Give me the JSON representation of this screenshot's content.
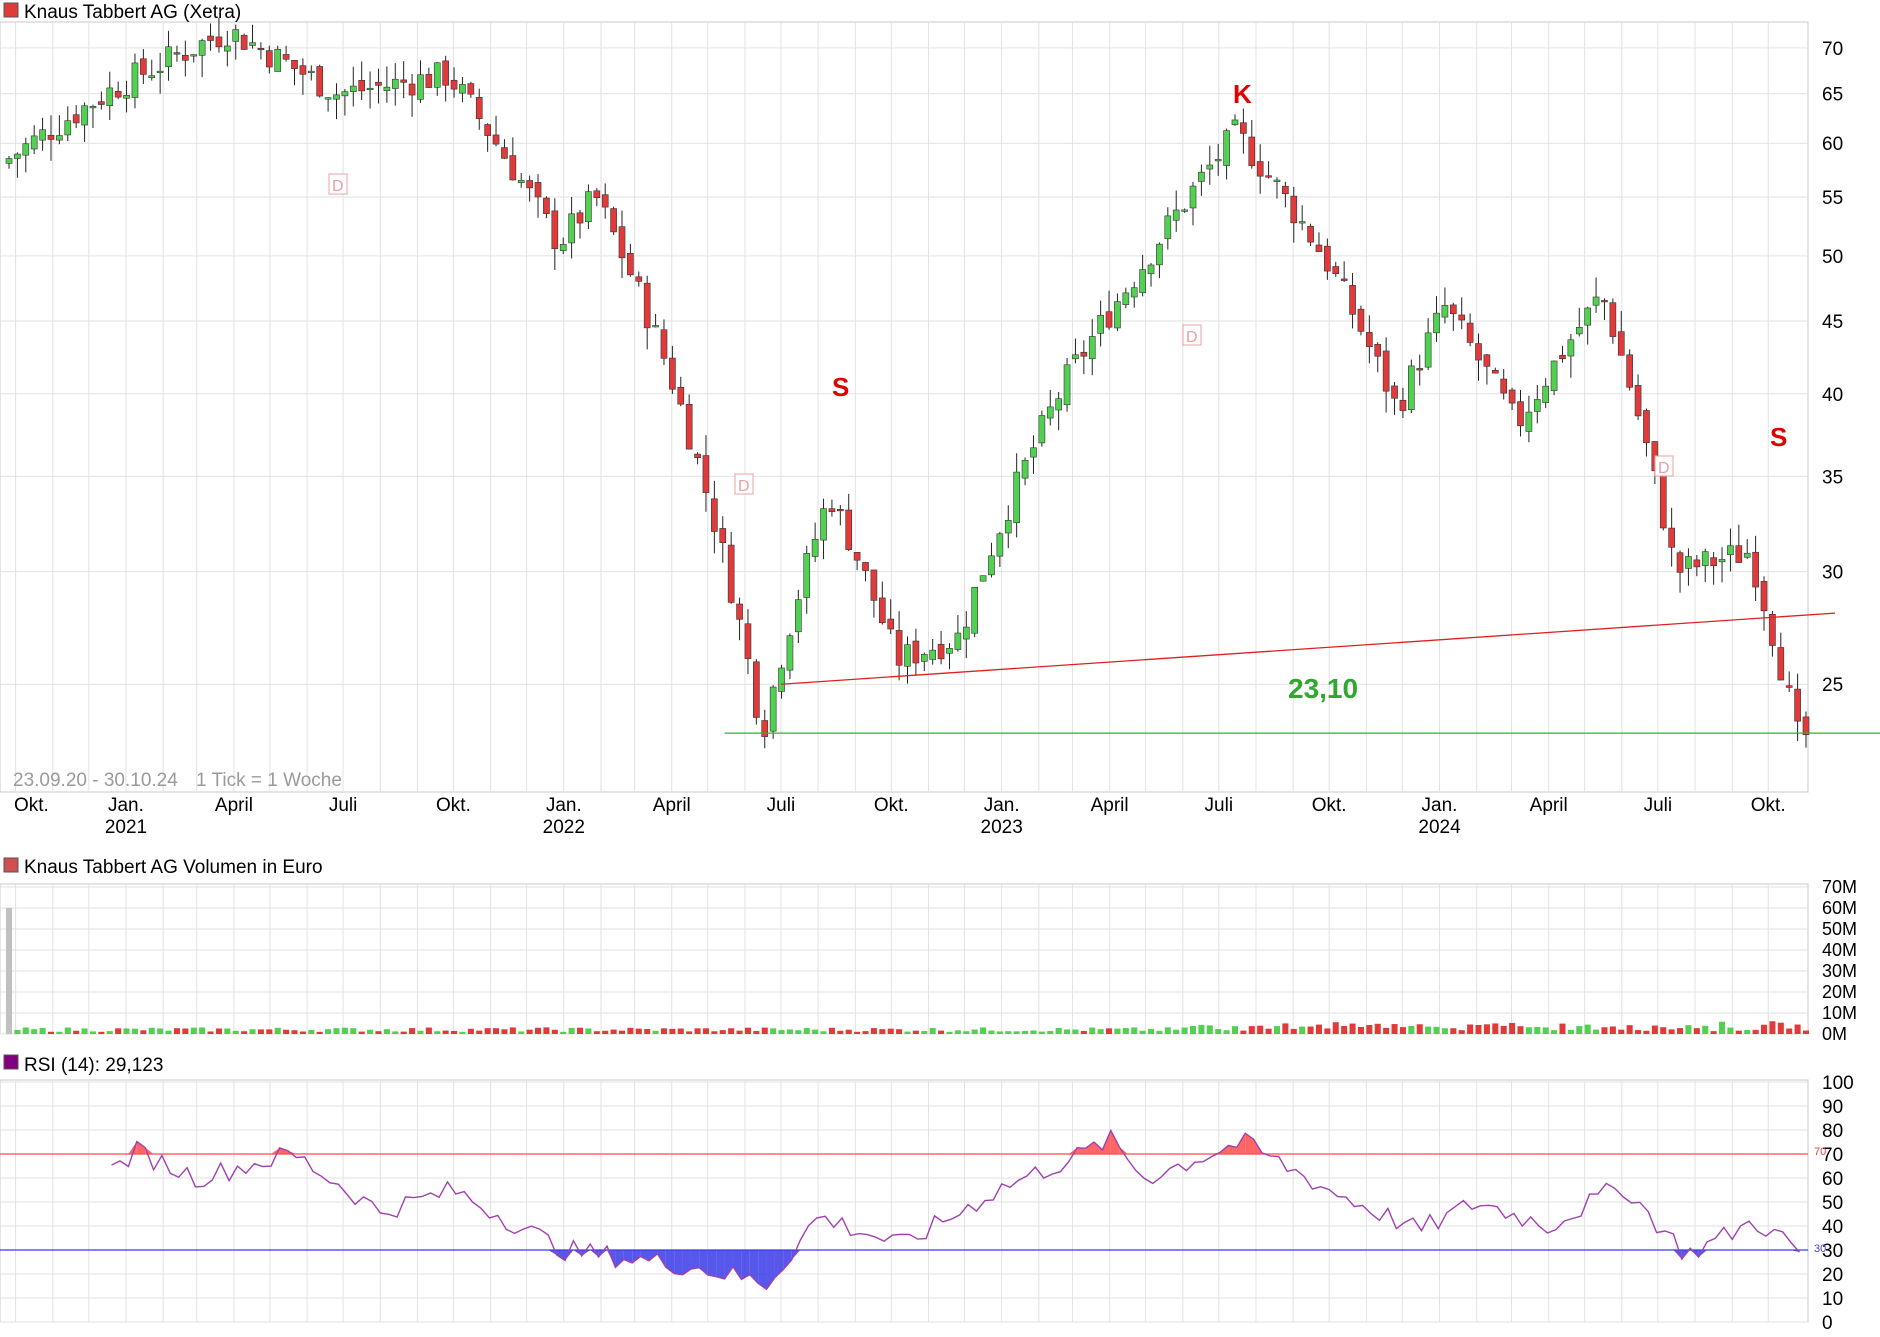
{
  "colors": {
    "up": "#52d052",
    "down": "#e03a3a",
    "grid": "#e2e2e2",
    "rsi_line": "#a040b0",
    "overbought": "#ff4a4a",
    "oversold": "#3a3ae8",
    "support": "#e02020",
    "level": "#30b030"
  },
  "price_panel": {
    "title": "Knaus Tabbert AG (Xetra)",
    "range_text": "23.09.20 - 30.10.24",
    "tick_text": "1 Tick = 1 Woche",
    "y_ticks": [
      "25",
      "30",
      "35",
      "40",
      "45",
      "50",
      "55",
      "60",
      "65",
      "70"
    ],
    "month_labels": [
      "Okt.",
      "Jan.",
      "April",
      "Juli",
      "Okt.",
      "Jan.",
      "April",
      "Juli",
      "Okt.",
      "Jan.",
      "April",
      "Juli",
      "Okt.",
      "Jan.",
      "April",
      "Juli",
      "Okt."
    ],
    "year_labels": [
      "2021",
      "2022",
      "2023",
      "2024"
    ],
    "annotations": {
      "s1": "S",
      "k": "K",
      "s2": "S",
      "level_label": "23,10",
      "d_markers": [
        "D",
        "D",
        "D",
        "D"
      ]
    }
  },
  "volume_panel": {
    "title": "Knaus Tabbert AG Volumen in Euro",
    "y_ticks": [
      "0M",
      "10M",
      "20M",
      "30M",
      "40M",
      "50M",
      "60M",
      "70M"
    ]
  },
  "rsi_panel": {
    "title": "RSI (14): 29,123",
    "y_ticks": [
      "0",
      "10",
      "20",
      "30",
      "40",
      "50",
      "60",
      "70",
      "80",
      "90",
      "100"
    ],
    "line70": "70",
    "line30": "30"
  },
  "chart_data": {
    "type": "candlestick",
    "title": "Knaus Tabbert AG (Xetra)",
    "period": "23.09.20 - 30.10.24",
    "interval": "1 Tick = 1 Woche",
    "ylim": [
      21,
      73
    ],
    "key_points": [
      {
        "date": "2020-09-23",
        "close": 58
      },
      {
        "date": "2021-01-01",
        "close": 66
      },
      {
        "date": "2021-04-01",
        "close": 72
      },
      {
        "date": "2021-07-01",
        "close": 65
      },
      {
        "date": "2021-10-01",
        "close": 67
      },
      {
        "date": "2022-01-01",
        "close": 51
      },
      {
        "date": "2022-02-01",
        "close": 55
      },
      {
        "date": "2022-04-01",
        "close": 42
      },
      {
        "date": "2022-06-20",
        "close": 23.1
      },
      {
        "date": "2022-08-15",
        "close": 34
      },
      {
        "date": "2022-10-10",
        "close": 26
      },
      {
        "date": "2022-12-01",
        "close": 27
      },
      {
        "date": "2023-03-01",
        "close": 41
      },
      {
        "date": "2023-05-01",
        "close": 49
      },
      {
        "date": "2023-07-20",
        "close": 61
      },
      {
        "date": "2023-10-01",
        "close": 50
      },
      {
        "date": "2023-12-01",
        "close": 39
      },
      {
        "date": "2024-01-10",
        "close": 46
      },
      {
        "date": "2024-03-10",
        "close": 38
      },
      {
        "date": "2024-05-20",
        "close": 47
      },
      {
        "date": "2024-07-20",
        "close": 30
      },
      {
        "date": "2024-09-20",
        "close": 31
      },
      {
        "date": "2024-10-30",
        "close": 23
      }
    ],
    "support_line": [
      {
        "date": "2022-07-01",
        "value": 25.0
      },
      {
        "date": "2024-10-30",
        "value": 28.0
      }
    ],
    "horizontal_level": 23.1,
    "annotations": [
      "S",
      "K",
      "S"
    ],
    "rsi": {
      "period": 14,
      "last": 29.123,
      "overbought": 70,
      "oversold": 30
    },
    "rsi_key_points": [
      {
        "date": "2020-12-20",
        "value": 63
      },
      {
        "date": "2021-01-10",
        "value": 71
      },
      {
        "date": "2021-03-01",
        "value": 60
      },
      {
        "date": "2021-05-20",
        "value": 70
      },
      {
        "date": "2021-08-01",
        "value": 46
      },
      {
        "date": "2021-10-01",
        "value": 55
      },
      {
        "date": "2022-01-01",
        "value": 30
      },
      {
        "date": "2022-04-20",
        "value": 23
      },
      {
        "date": "2022-06-20",
        "value": 16
      },
      {
        "date": "2022-08-01",
        "value": 44
      },
      {
        "date": "2022-10-10",
        "value": 32
      },
      {
        "date": "2023-01-01",
        "value": 56
      },
      {
        "date": "2023-03-10",
        "value": 70
      },
      {
        "date": "2023-04-01",
        "value": 76
      },
      {
        "date": "2023-05-01",
        "value": 60
      },
      {
        "date": "2023-07-20",
        "value": 75
      },
      {
        "date": "2023-10-01",
        "value": 55
      },
      {
        "date": "2023-12-15",
        "value": 38
      },
      {
        "date": "2024-02-01",
        "value": 50
      },
      {
        "date": "2024-04-01",
        "value": 40
      },
      {
        "date": "2024-06-01",
        "value": 57
      },
      {
        "date": "2024-07-25",
        "value": 28
      },
      {
        "date": "2024-09-20",
        "value": 42
      },
      {
        "date": "2024-10-30",
        "value": 29
      }
    ]
  }
}
